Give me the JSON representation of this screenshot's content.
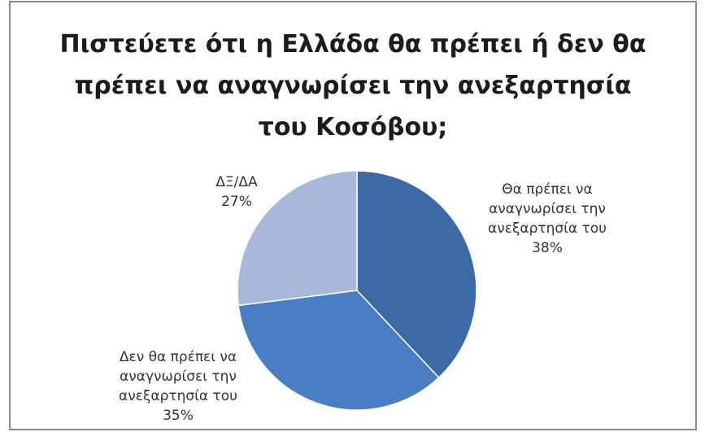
{
  "chart_data": {
    "type": "pie",
    "title_lines": [
      "Πιστεύετε ότι η Ελλάδα θα πρέπει ή δεν θα",
      "πρέπει να αναγνωρίσει την ανεξαρτησία",
      "του Κοσόβου;"
    ],
    "slices": [
      {
        "label_lines": [
          "Θα πρέπει να",
          "αναγνωρίσει την",
          "ανεξαρτησία του"
        ],
        "value": 38,
        "value_label": "38%",
        "color": "#3c6aa6"
      },
      {
        "label_lines": [
          "Δεν θα πρέπει να",
          "αναγνωρίσει την",
          "ανεξαρτησία του"
        ],
        "value": 35,
        "value_label": "35%",
        "color": "#4a7ec4"
      },
      {
        "label_lines": [
          "ΔΞ/ΔΑ"
        ],
        "value": 27,
        "value_label": "27%",
        "color": "#a7b8da"
      }
    ],
    "start": "12 o'clock",
    "direction": "clockwise",
    "legend": "none",
    "data_labels": "outside"
  }
}
